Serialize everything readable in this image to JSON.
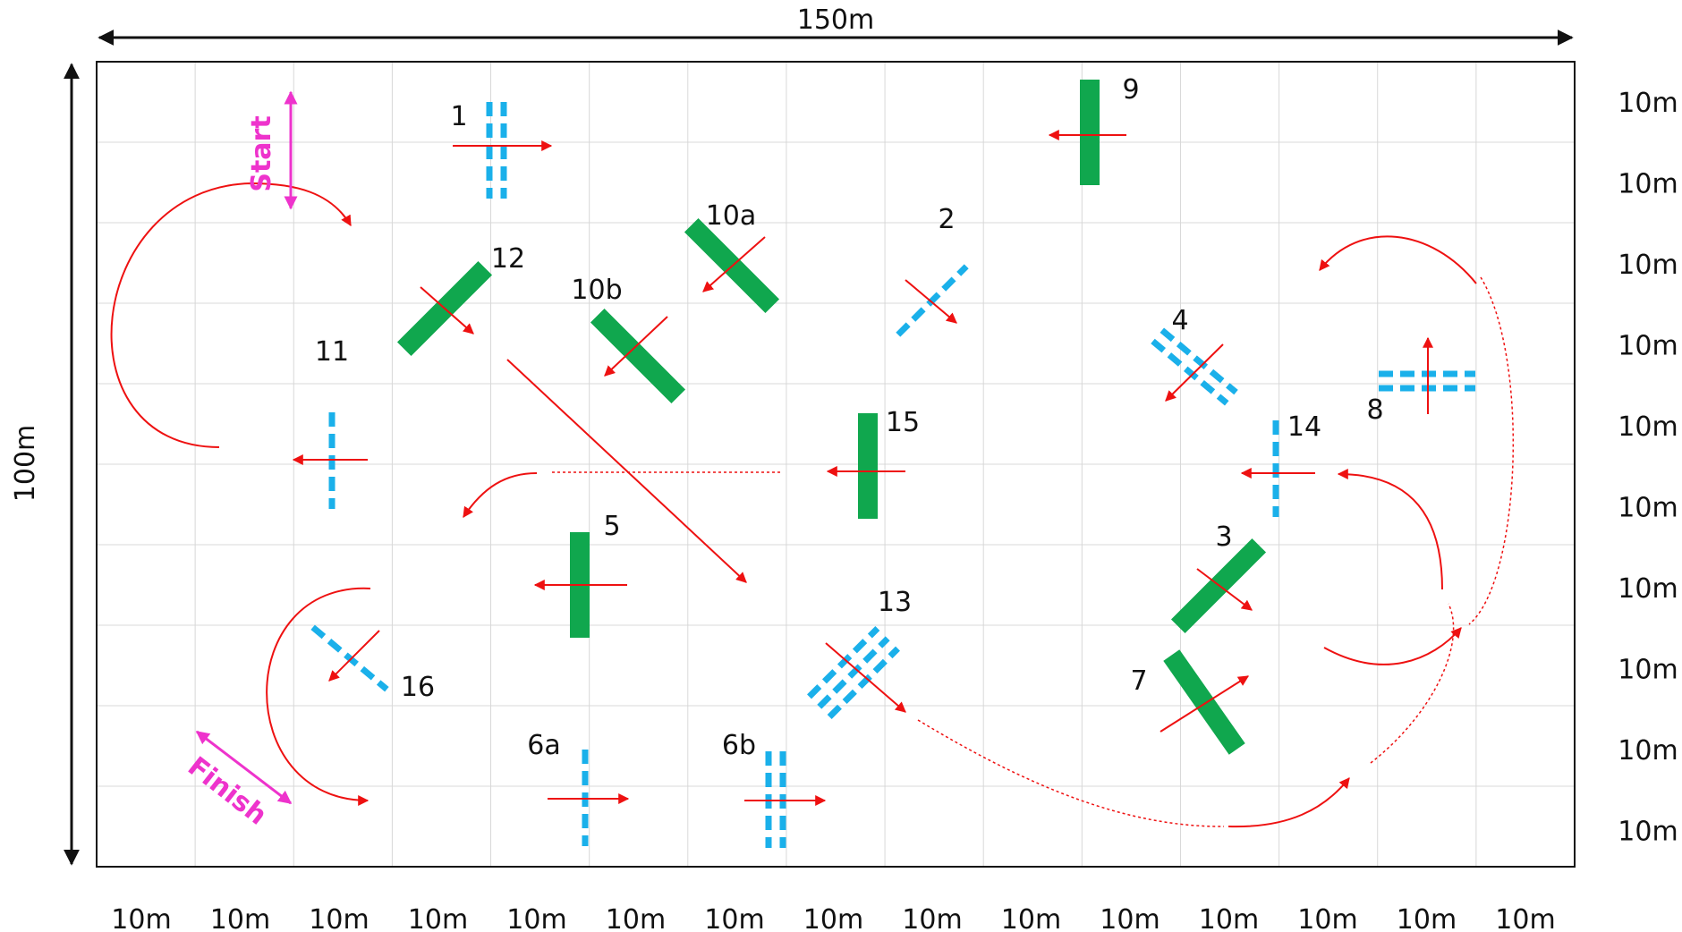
{
  "dimensions": {
    "width_label": "150m",
    "height_label": "100m"
  },
  "grid": {
    "columns": 15,
    "rows": 10,
    "column_labels": [
      "10m",
      "10m",
      "10m",
      "10m",
      "10m",
      "10m",
      "10m",
      "10m",
      "10m",
      "10m",
      "10m",
      "10m",
      "10m",
      "10m",
      "10m"
    ],
    "row_labels": [
      "10m",
      "10m",
      "10m",
      "10m",
      "10m",
      "10m",
      "10m",
      "10m",
      "10m",
      "10m"
    ]
  },
  "markers": {
    "start": "Start",
    "finish": "Finish"
  },
  "obstacles": [
    {
      "label": "1",
      "kind": "double-pole",
      "color": "#1ab0ea"
    },
    {
      "label": "2",
      "kind": "pole",
      "color": "#1ab0ea"
    },
    {
      "label": "3",
      "kind": "fence",
      "color": "#10a74e"
    },
    {
      "label": "4",
      "kind": "double-pole",
      "color": "#1ab0ea"
    },
    {
      "label": "5",
      "kind": "fence",
      "color": "#10a74e"
    },
    {
      "label": "6a",
      "kind": "pole",
      "color": "#1ab0ea"
    },
    {
      "label": "6b",
      "kind": "double-pole",
      "color": "#1ab0ea"
    },
    {
      "label": "7",
      "kind": "fence",
      "color": "#10a74e"
    },
    {
      "label": "8",
      "kind": "double-pole",
      "color": "#1ab0ea"
    },
    {
      "label": "9",
      "kind": "fence",
      "color": "#10a74e"
    },
    {
      "label": "10a",
      "kind": "fence",
      "color": "#10a74e"
    },
    {
      "label": "10b",
      "kind": "fence",
      "color": "#10a74e"
    },
    {
      "label": "11",
      "kind": "pole",
      "color": "#1ab0ea"
    },
    {
      "label": "12",
      "kind": "fence",
      "color": "#10a74e"
    },
    {
      "label": "13",
      "kind": "triple-pole",
      "color": "#1ab0ea"
    },
    {
      "label": "14",
      "kind": "pole",
      "color": "#1ab0ea"
    },
    {
      "label": "15",
      "kind": "fence",
      "color": "#10a74e"
    },
    {
      "label": "16",
      "kind": "pole",
      "color": "#1ab0ea"
    }
  ],
  "colors": {
    "route": "#ee1111",
    "fence": "#10a74e",
    "pole": "#1ab0ea",
    "marker": "#ee33cc",
    "grid": "#d8d8d8",
    "border": "#111111"
  }
}
